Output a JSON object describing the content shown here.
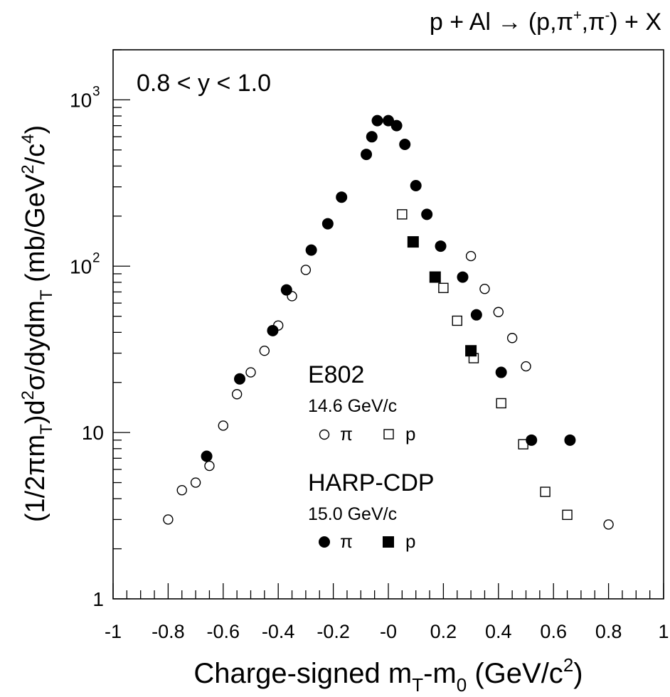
{
  "chart_data": {
    "type": "scatter",
    "title": "p + Al → (p,π⁺,π⁻) + X",
    "title_parts": {
      "lhs": "p + Al",
      "arrow": "→",
      "open": "(p,π",
      "plus": "+",
      "comma": ",π",
      "minus": "-",
      "close": ") + X"
    },
    "annotation": "0.8 < y < 1.0",
    "xlabel": "Charge-signed m_T-m_0 (GeV/c²)",
    "xlabel_parts": {
      "a": "Charge-signed m",
      "sub1": "T",
      "b": "-m",
      "sub2": "0",
      "c": " (GeV/c",
      "sup": "2",
      "d": ")"
    },
    "ylabel": "(1/2πm_T)d²σ/dydm_T (mb/GeV²/c⁴)",
    "ylabel_parts": {
      "a": "(1/2πm",
      "sub1": "T",
      "b": ")d",
      "sup1": "2",
      "c": "σ/dydm",
      "sub2": "T",
      "d": " (mb/GeV",
      "sup2": "2",
      "e": "/c",
      "sup3": "4",
      "f": ")"
    },
    "xlim": [
      -1,
      1
    ],
    "ylim": [
      1,
      2000
    ],
    "yscale": "log",
    "grid": false,
    "legend": {
      "groups": [
        {
          "title": "E802",
          "subtitle": "14.6 GeV/c",
          "pi_label": "π",
          "p_label": "p",
          "filled": false
        },
        {
          "title": "HARP-CDP",
          "subtitle": "15.0 GeV/c",
          "pi_label": "π",
          "p_label": "p",
          "filled": true
        }
      ]
    },
    "x_tick_labels": [
      {
        "v": -1,
        "t": "-1"
      },
      {
        "v": -0.8,
        "t": "-0.8"
      },
      {
        "v": -0.6,
        "t": "-0.6"
      },
      {
        "v": -0.4,
        "t": "-0.4"
      },
      {
        "v": -0.2,
        "t": "-0.2"
      },
      {
        "v": 0,
        "t": "-0"
      },
      {
        "v": 0.2,
        "t": "0.2"
      },
      {
        "v": 0.4,
        "t": "0.4"
      },
      {
        "v": 0.6,
        "t": "0.6"
      },
      {
        "v": 0.8,
        "t": "0.8"
      },
      {
        "v": 1,
        "t": "1"
      }
    ],
    "y_tick_labels": [
      {
        "v": 1,
        "base": "1",
        "exp": ""
      },
      {
        "v": 10,
        "base": "10",
        "exp": ""
      },
      {
        "v": 100,
        "base": "10",
        "exp": "2"
      },
      {
        "v": 1000,
        "base": "10",
        "exp": "3"
      }
    ],
    "series": [
      {
        "name": "E802 π",
        "marker": "open-circle",
        "x": [
          -0.8,
          -0.75,
          -0.7,
          -0.65,
          -0.6,
          -0.55,
          -0.5,
          -0.45,
          -0.4,
          -0.35,
          -0.3,
          0.3,
          0.35,
          0.4,
          0.45,
          0.5,
          0.8
        ],
        "y": [
          3.0,
          4.5,
          5.0,
          6.3,
          11,
          17,
          23,
          31,
          44,
          66,
          95,
          115,
          73,
          53,
          37,
          25,
          2.8
        ]
      },
      {
        "name": "E802 p",
        "marker": "open-square",
        "x": [
          0.05,
          0.2,
          0.25,
          0.31,
          0.41,
          0.49,
          0.57,
          0.65
        ],
        "y": [
          205,
          74,
          47,
          28,
          15,
          8.5,
          4.4,
          3.2
        ]
      },
      {
        "name": "HARP-CDP π",
        "marker": "filled-circle",
        "x": [
          -0.66,
          -0.54,
          -0.42,
          -0.37,
          -0.28,
          -0.22,
          -0.17,
          -0.08,
          -0.06,
          -0.04,
          0.0,
          0.03,
          0.06,
          0.1,
          0.14,
          0.19,
          0.27,
          0.32,
          0.41,
          0.52,
          0.66
        ],
        "y": [
          7.2,
          21,
          41,
          72,
          125,
          180,
          260,
          470,
          600,
          750,
          750,
          700,
          540,
          305,
          205,
          132,
          86,
          51,
          23,
          9.0,
          9.0
        ]
      },
      {
        "name": "HARP-CDP p",
        "marker": "filled-square",
        "x": [
          0.09,
          0.17,
          0.3
        ],
        "y": [
          140,
          86,
          31
        ]
      }
    ]
  }
}
